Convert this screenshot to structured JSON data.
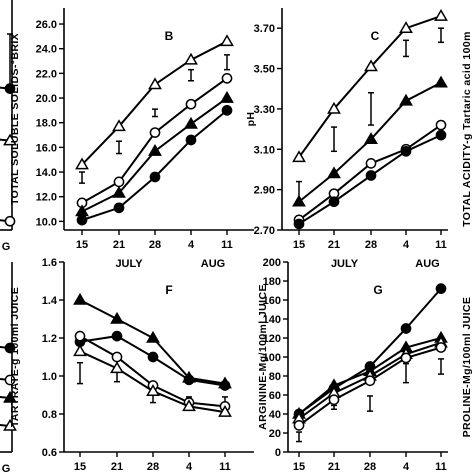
{
  "chart_data": [
    {
      "id": "A",
      "type": "line",
      "visible": "partial",
      "x_ticks": [
        "G"
      ],
      "y_ticks": [],
      "series": [
        {
          "marker": "open-circle",
          "x": [
            11
          ],
          "y": [
            0.82
          ]
        },
        {
          "marker": "open-triangle",
          "x": [
            11
          ],
          "y": [
            0.51
          ]
        },
        {
          "marker": "filled-circle",
          "x": [
            11
          ],
          "y": [
            0.31
          ]
        }
      ],
      "error_bars": [
        {
          "x": 11,
          "low": 0.1,
          "high": 0.3
        }
      ]
    },
    {
      "id": "B",
      "type": "line",
      "panel_label": "B",
      "ylabel": "TOTAL SOLUBLE SOLIDS-°BRIX",
      "ylim": [
        9.3,
        27.3
      ],
      "y_ticks": [
        "10.0",
        "12.0",
        "14.0",
        "16.0",
        "18.0",
        "20.0",
        "22.0",
        "24.0",
        "26.0"
      ],
      "x_ticks": [
        "15",
        "21",
        "28",
        "4",
        "11"
      ],
      "month_labels": [
        "JULY",
        "AUG"
      ],
      "series": [
        {
          "marker": "open-triangle",
          "x": [
            15,
            21,
            28,
            4,
            11
          ],
          "y": [
            14.6,
            17.7,
            21.1,
            23.1,
            24.6
          ]
        },
        {
          "marker": "open-circle",
          "x": [
            15,
            21,
            28,
            4,
            11
          ],
          "y": [
            11.5,
            13.2,
            17.2,
            19.5,
            21.6
          ]
        },
        {
          "marker": "filled-triangle",
          "x": [
            15,
            21,
            28,
            4,
            11
          ],
          "y": [
            10.8,
            12.3,
            15.7,
            17.9,
            20.0
          ]
        },
        {
          "marker": "filled-circle",
          "x": [
            15,
            21,
            28,
            4,
            11
          ],
          "y": [
            10.1,
            11.1,
            13.6,
            16.6,
            19.0
          ]
        }
      ],
      "error_bars": [
        {
          "x": 15,
          "low": 13.1,
          "high": 14.0
        },
        {
          "x": 21,
          "low": 15.5,
          "high": 16.5
        },
        {
          "x": 28,
          "low": 18.5,
          "high": 19.1
        },
        {
          "x": 4,
          "low": 21.4,
          "high": 22.3
        },
        {
          "x": 11,
          "low": 22.3,
          "high": 23.5
        }
      ]
    },
    {
      "id": "C",
      "type": "line",
      "panel_label": "C",
      "ylabel": "pH",
      "right_label": "TOTAL ACIDITY-g Tartaric acid 100m",
      "ylim": [
        2.7,
        3.8
      ],
      "y_ticks": [
        "2.70",
        "2.90",
        "3.10",
        "3.30",
        "3.50",
        "3.70"
      ],
      "x_ticks": [
        "15",
        "21",
        "28",
        "4",
        "11"
      ],
      "month_labels": [
        "JULY",
        "AUG"
      ],
      "series": [
        {
          "marker": "open-triangle",
          "x": [
            15,
            21,
            28,
            4,
            11
          ],
          "y": [
            3.06,
            3.3,
            3.51,
            3.7,
            3.76
          ]
        },
        {
          "marker": "filled-triangle",
          "x": [
            15,
            21,
            28,
            4,
            11
          ],
          "y": [
            2.84,
            2.98,
            3.15,
            3.34,
            3.43
          ]
        },
        {
          "marker": "open-circle",
          "x": [
            15,
            21,
            28,
            4,
            11
          ],
          "y": [
            2.75,
            2.88,
            3.03,
            3.1,
            3.22
          ]
        },
        {
          "marker": "filled-circle",
          "x": [
            15,
            21,
            28,
            4,
            11
          ],
          "y": [
            2.73,
            2.84,
            2.97,
            3.09,
            3.17
          ]
        }
      ],
      "error_bars": [
        {
          "x": 15,
          "low": 2.83,
          "high": 2.94
        },
        {
          "x": 21,
          "low": 3.09,
          "high": 3.21
        },
        {
          "x": 28,
          "low": 3.22,
          "high": 3.38
        },
        {
          "x": 4,
          "low": 3.56,
          "high": 3.64
        },
        {
          "x": 11,
          "low": 3.63,
          "high": 3.7
        }
      ]
    },
    {
      "id": "E",
      "type": "line",
      "visible": "partial",
      "x_ticks": [
        "G"
      ],
      "y_ticks": [],
      "series": [
        {
          "marker": "filled-circle",
          "x": [
            11
          ],
          "y": [
            0.52
          ]
        },
        {
          "marker": "open-circle",
          "x": [
            11
          ],
          "y": [
            0.36
          ]
        },
        {
          "marker": "filled-triangle",
          "x": [
            11
          ],
          "y": [
            0.27
          ]
        },
        {
          "marker": "open-triangle",
          "x": [
            11
          ],
          "y": [
            0.13
          ]
        }
      ]
    },
    {
      "id": "F",
      "type": "line",
      "panel_label": "F",
      "ylabel": "TARTRATE-g 100ml JUICE",
      "ylim": [
        0.6,
        1.6
      ],
      "y_ticks": [
        "0.6",
        "0.8",
        "1.0",
        "1.2",
        "1.4",
        "1.6"
      ],
      "x_ticks": [
        "15",
        "21",
        "28",
        "4",
        "11"
      ],
      "month_labels": [
        "JULY",
        "AUG"
      ],
      "series": [
        {
          "marker": "filled-triangle",
          "x": [
            15,
            21,
            28,
            4,
            11
          ],
          "y": [
            1.4,
            1.3,
            1.2,
            0.99,
            0.96
          ]
        },
        {
          "marker": "filled-circle",
          "x": [
            15,
            21,
            28,
            4,
            11
          ],
          "y": [
            1.18,
            1.21,
            1.1,
            0.98,
            0.95
          ]
        },
        {
          "marker": "open-circle",
          "x": [
            15,
            21,
            28,
            4,
            11
          ],
          "y": [
            1.21,
            1.1,
            0.95,
            0.86,
            0.84
          ]
        },
        {
          "marker": "open-triangle",
          "x": [
            15,
            21,
            28,
            4,
            11
          ],
          "y": [
            1.13,
            1.04,
            0.92,
            0.84,
            0.81
          ]
        }
      ],
      "error_bars": [
        {
          "x": 15,
          "low": 0.96,
          "high": 1.07
        },
        {
          "x": 21,
          "low": 0.97,
          "high": 1.08
        },
        {
          "x": 28,
          "low": 0.86,
          "high": 0.9
        },
        {
          "x": 4,
          "low": 0.84,
          "high": 0.89
        },
        {
          "x": 11,
          "low": 0.82,
          "high": 0.89
        }
      ]
    },
    {
      "id": "G",
      "type": "line",
      "panel_label": "G",
      "ylabel": "ARGININE-Mg/100ml JUICE",
      "right_label": "PROLINE-Mg/100ml JUICE",
      "ylim": [
        0,
        200
      ],
      "y_ticks": [
        "0",
        "20",
        "40",
        "60",
        "80",
        "100",
        "120",
        "140",
        "160",
        "180",
        "200"
      ],
      "x_ticks": [
        "15",
        "21",
        "28",
        "4",
        "11"
      ],
      "month_labels": [
        "JULY",
        "AUG"
      ],
      "series": [
        {
          "marker": "filled-circle",
          "x": [
            15,
            21,
            28,
            4,
            11
          ],
          "y": [
            40,
            67,
            90,
            130,
            172
          ]
        },
        {
          "marker": "filled-triangle",
          "x": [
            15,
            21,
            28,
            4,
            11
          ],
          "y": [
            40,
            70,
            85,
            110,
            120
          ]
        },
        {
          "marker": "open-triangle",
          "x": [
            15,
            21,
            28,
            4,
            11
          ],
          "y": [
            35,
            62,
            80,
            103,
            115
          ]
        },
        {
          "marker": "open-circle",
          "x": [
            15,
            21,
            28,
            4,
            11
          ],
          "y": [
            28,
            55,
            75,
            99,
            110
          ]
        }
      ],
      "error_bars": [
        {
          "x": 15,
          "low": 11,
          "high": 21
        },
        {
          "x": 21,
          "low": 45,
          "high": 49
        },
        {
          "x": 28,
          "low": 43,
          "high": 59
        },
        {
          "x": 4,
          "low": 73,
          "high": 93
        },
        {
          "x": 11,
          "low": 82,
          "high": 98
        }
      ]
    }
  ]
}
